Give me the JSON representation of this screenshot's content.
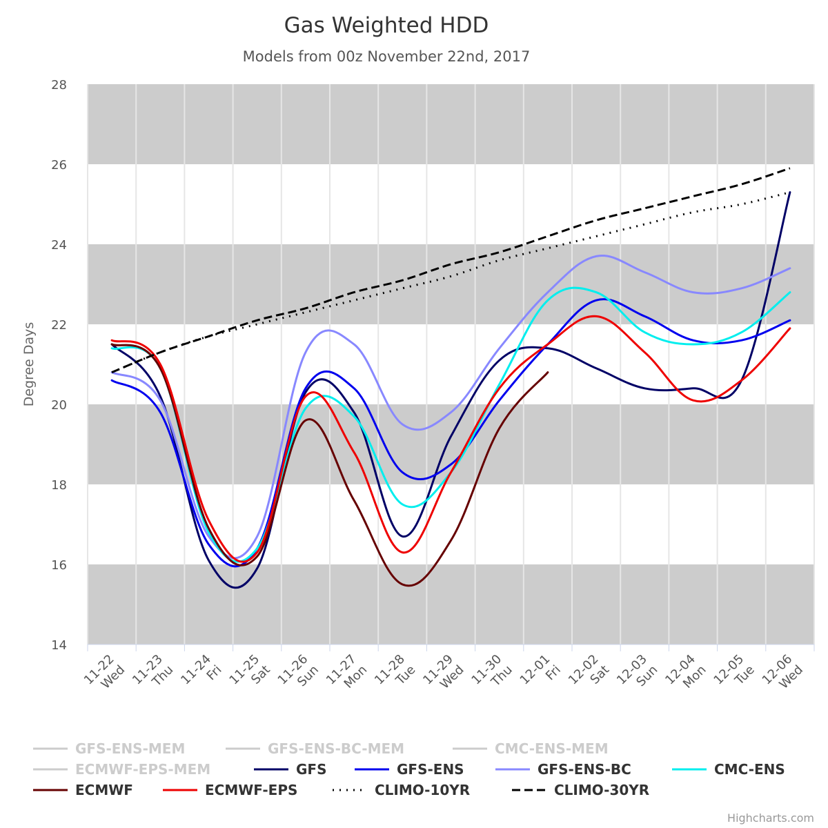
{
  "chart_data": {
    "type": "line",
    "title": "Gas Weighted HDD",
    "subtitle": "Models from 00z November 22nd, 2017",
    "ylabel": "Degree Days",
    "xlabel": "",
    "ylim": [
      14,
      28
    ],
    "yticks": [
      14,
      16,
      18,
      20,
      22,
      24,
      26,
      28
    ],
    "grid": true,
    "legend_position": "bottom",
    "x_dates": [
      "11-22",
      "11-23",
      "11-24",
      "11-25",
      "11-26",
      "11-27",
      "11-28",
      "11-29",
      "11-30",
      "12-01",
      "12-02",
      "12-03",
      "12-04",
      "12-05",
      "12-06"
    ],
    "x_days": [
      "Wed",
      "Thu",
      "Fri",
      "Sat",
      "Sun",
      "Mon",
      "Tue",
      "Wed",
      "Thu",
      "Fri",
      "Sat",
      "Sun",
      "Mon",
      "Tue",
      "Wed"
    ],
    "series": [
      {
        "name": "GFS-ENS-MEM",
        "color": "#cccccc",
        "dash": "solid",
        "values": []
      },
      {
        "name": "GFS-ENS-BC-MEM",
        "color": "#cccccc",
        "dash": "solid",
        "values": []
      },
      {
        "name": "CMC-ENS-MEM",
        "color": "#cccccc",
        "dash": "solid",
        "values": []
      },
      {
        "name": "ECMWF-EPS-MEM",
        "color": "#cccccc",
        "dash": "solid",
        "values": []
      },
      {
        "name": "GFS",
        "color": "#000066",
        "dash": "solid",
        "values": [
          21.5,
          20.2,
          16.1,
          15.9,
          20.3,
          19.8,
          16.7,
          19.2,
          21.1,
          21.4,
          20.9,
          20.4,
          20.4,
          20.6,
          25.3
        ]
      },
      {
        "name": "GFS-ENS",
        "color": "#0000ee",
        "dash": "solid",
        "values": [
          20.6,
          19.8,
          16.5,
          16.4,
          20.4,
          20.4,
          18.3,
          18.5,
          20.1,
          21.5,
          22.6,
          22.2,
          21.6,
          21.6,
          22.1
        ]
      },
      {
        "name": "GFS-ENS-BC",
        "color": "#8888ff",
        "dash": "solid",
        "values": [
          20.8,
          20.1,
          16.7,
          16.7,
          21.3,
          21.5,
          19.5,
          19.8,
          21.4,
          22.8,
          23.7,
          23.3,
          22.8,
          22.9,
          23.4
        ]
      },
      {
        "name": "CMC-ENS",
        "color": "#00eeee",
        "dash": "solid",
        "values": [
          21.4,
          20.9,
          16.8,
          16.4,
          19.9,
          19.7,
          17.5,
          18.3,
          20.5,
          22.6,
          22.8,
          21.8,
          21.5,
          21.8,
          22.8
        ]
      },
      {
        "name": "ECMWF",
        "color": "#660000",
        "dash": "solid",
        "values": [
          21.5,
          20.9,
          16.9,
          16.2,
          19.6,
          17.6,
          15.5,
          16.6,
          19.4,
          20.8,
          null,
          null,
          null,
          null,
          null
        ]
      },
      {
        "name": "ECMWF-EPS",
        "color": "#ee0000",
        "dash": "solid",
        "values": [
          21.6,
          21.0,
          17.1,
          16.3,
          20.2,
          18.8,
          16.3,
          18.3,
          20.4,
          21.5,
          22.2,
          21.3,
          20.1,
          20.6,
          21.9
        ]
      },
      {
        "name": "CLIMO-10YR",
        "color": "#000000",
        "dash": "dotted",
        "values": [
          20.8,
          21.3,
          21.7,
          22.0,
          22.3,
          22.6,
          22.9,
          23.2,
          23.6,
          23.9,
          24.2,
          24.5,
          24.8,
          25.0,
          25.3
        ]
      },
      {
        "name": "CLIMO-30YR",
        "color": "#000000",
        "dash": "dashed",
        "values": [
          20.8,
          21.3,
          21.7,
          22.1,
          22.4,
          22.8,
          23.1,
          23.5,
          23.8,
          24.2,
          24.6,
          24.9,
          25.2,
          25.5,
          25.9
        ]
      }
    ]
  },
  "credit": "Highcharts.com"
}
